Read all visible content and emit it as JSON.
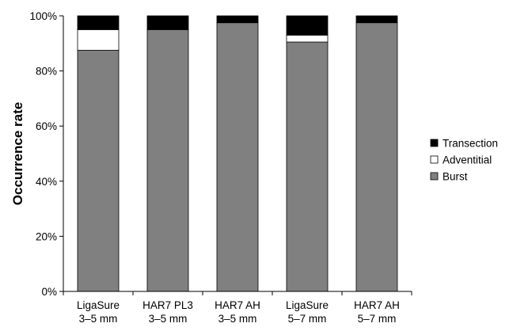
{
  "chart_data": {
    "type": "bar",
    "stacked": true,
    "percent": true,
    "title": "",
    "xlabel": "",
    "ylabel": "Occurrence rate",
    "ylim": [
      0,
      100
    ],
    "yticks": [
      "0%",
      "20%",
      "40%",
      "60%",
      "80%",
      "100%"
    ],
    "categories": [
      [
        "LigaSure",
        "3–5 mm"
      ],
      [
        "HAR7 PL3",
        "3–5 mm"
      ],
      [
        "HAR7 AH",
        "3–5 mm"
      ],
      [
        "LigaSure",
        "5–7 mm"
      ],
      [
        "HAR7 AH",
        "5–7 mm"
      ]
    ],
    "series": [
      {
        "name": "Burst",
        "color": "#808080",
        "values": [
          87.5,
          95,
          97.5,
          90.5,
          97.5
        ]
      },
      {
        "name": "Adventitial",
        "color": "#ffffff",
        "values": [
          7.5,
          0,
          0,
          2.5,
          0
        ]
      },
      {
        "name": "Transection",
        "color": "#000000",
        "values": [
          5,
          5,
          2.5,
          7,
          2.5
        ]
      }
    ],
    "legend": {
      "position": "right",
      "order": [
        "Transection",
        "Adventitial",
        "Burst"
      ]
    },
    "grid": false
  }
}
